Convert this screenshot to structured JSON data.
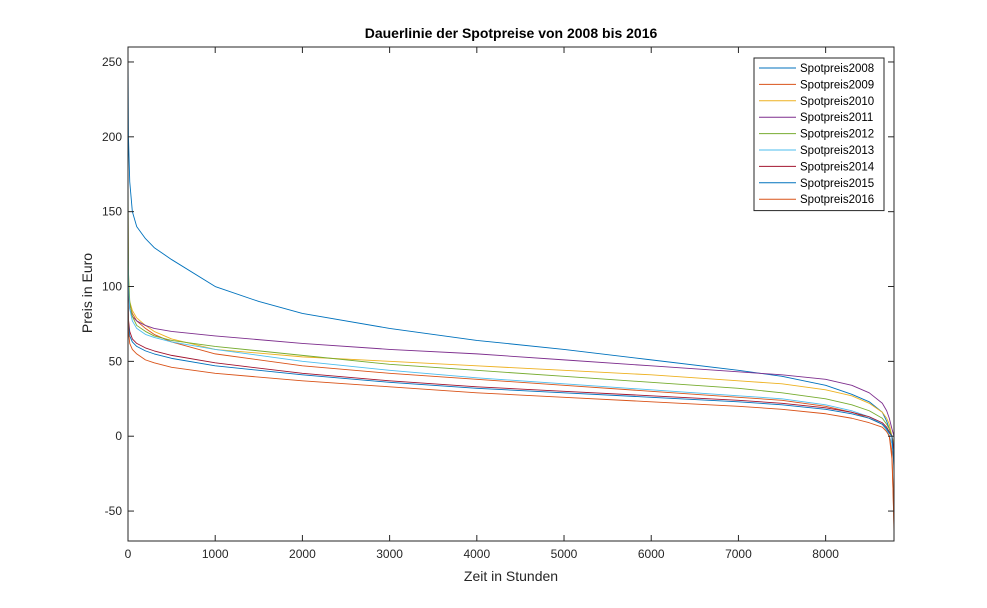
{
  "chart_data": {
    "type": "line",
    "title": "Dauerlinie der Spotpreise von 2008 bis 2016",
    "xlabel": "Zeit in Stunden",
    "ylabel": "Preis in Euro",
    "xlim": [
      0,
      8784
    ],
    "ylim": [
      -70,
      260
    ],
    "xticks": [
      0,
      1000,
      2000,
      3000,
      4000,
      5000,
      6000,
      7000,
      8000
    ],
    "yticks": [
      -50,
      0,
      50,
      100,
      150,
      200,
      250
    ],
    "legend": "top-right",
    "grid": false,
    "series": [
      {
        "name": "Spotpreis2008",
        "color": "#0072BD",
        "x": [
          0,
          5,
          20,
          50,
          100,
          200,
          300,
          500,
          1000,
          1500,
          2000,
          3000,
          4000,
          5000,
          6000,
          7000,
          7500,
          8000,
          8300,
          8500,
          8650,
          8700,
          8730,
          8760,
          8780,
          8784
        ],
        "y": [
          255,
          200,
          170,
          150,
          140,
          132,
          126,
          118,
          100,
          90,
          82,
          72,
          64,
          58,
          51,
          44,
          40,
          34,
          28,
          23,
          16,
          10,
          5,
          0,
          -15,
          -25
        ]
      },
      {
        "name": "Spotpreis2009",
        "color": "#D95319",
        "x": [
          0,
          5,
          20,
          50,
          100,
          200,
          300,
          500,
          1000,
          2000,
          3000,
          4000,
          5000,
          6000,
          7000,
          7500,
          8000,
          8300,
          8500,
          8650,
          8700,
          8730,
          8760,
          8775,
          8784
        ],
        "y": [
          160,
          100,
          88,
          82,
          77,
          72,
          68,
          63,
          55,
          47,
          42,
          38,
          34,
          30,
          26,
          24,
          20,
          16,
          12,
          8,
          4,
          0,
          -15,
          -40,
          -65
        ]
      },
      {
        "name": "Spotpreis2010",
        "color": "#EDB120",
        "x": [
          0,
          5,
          20,
          50,
          100,
          200,
          300,
          500,
          1000,
          2000,
          3000,
          4000,
          5000,
          6000,
          7000,
          7500,
          8000,
          8300,
          8500,
          8650,
          8700,
          8730,
          8760,
          8784
        ],
        "y": [
          130,
          100,
          90,
          84,
          79,
          74,
          70,
          65,
          58,
          53,
          50,
          47,
          44,
          41,
          37,
          35,
          31,
          27,
          22,
          16,
          12,
          8,
          0,
          -5
        ]
      },
      {
        "name": "Spotpreis2011",
        "color": "#7E2F8E",
        "x": [
          0,
          5,
          20,
          50,
          100,
          200,
          300,
          500,
          1000,
          2000,
          3000,
          4000,
          5000,
          6000,
          7000,
          7500,
          8000,
          8300,
          8500,
          8650,
          8700,
          8730,
          8760,
          8784
        ],
        "y": [
          115,
          95,
          85,
          80,
          77,
          74,
          72,
          70,
          67,
          62,
          58,
          55,
          51,
          47,
          43,
          41,
          38,
          34,
          29,
          22,
          17,
          12,
          5,
          0
        ]
      },
      {
        "name": "Spotpreis2012",
        "color": "#77AC30",
        "x": [
          0,
          5,
          20,
          50,
          100,
          200,
          300,
          500,
          1000,
          2000,
          3000,
          4000,
          5000,
          6000,
          7000,
          7500,
          8000,
          8300,
          8500,
          8650,
          8700,
          8730,
          8760,
          8784
        ],
        "y": [
          175,
          110,
          90,
          80,
          74,
          70,
          67,
          64,
          60,
          54,
          48,
          44,
          40,
          36,
          32,
          29,
          25,
          21,
          17,
          12,
          8,
          5,
          0,
          -10
        ]
      },
      {
        "name": "Spotpreis2013",
        "color": "#4DBEEE",
        "x": [
          0,
          5,
          20,
          50,
          100,
          200,
          300,
          500,
          1000,
          2000,
          3000,
          4000,
          5000,
          6000,
          7000,
          7500,
          8000,
          8300,
          8500,
          8650,
          8700,
          8730,
          8760,
          8784
        ],
        "y": [
          130,
          100,
          85,
          77,
          72,
          68,
          66,
          63,
          58,
          50,
          44,
          39,
          35,
          31,
          27,
          25,
          21,
          17,
          13,
          8,
          4,
          0,
          -5,
          -15
        ]
      },
      {
        "name": "Spotpreis2014",
        "color": "#A2142F",
        "x": [
          0,
          5,
          20,
          50,
          100,
          200,
          300,
          500,
          1000,
          2000,
          3000,
          4000,
          5000,
          6000,
          7000,
          7500,
          8000,
          8300,
          8500,
          8650,
          8700,
          8730,
          8760,
          8784
        ],
        "y": [
          90,
          78,
          70,
          65,
          62,
          59,
          57,
          54,
          49,
          42,
          37,
          33,
          30,
          27,
          24,
          22,
          19,
          16,
          13,
          9,
          6,
          3,
          0,
          -10
        ]
      },
      {
        "name": "Spotpreis2015",
        "color": "#0072BD",
        "x": [
          0,
          5,
          20,
          50,
          100,
          200,
          300,
          500,
          1000,
          2000,
          3000,
          4000,
          5000,
          6000,
          7000,
          7500,
          8000,
          8300,
          8500,
          8650,
          8700,
          8730,
          8760,
          8784
        ],
        "y": [
          100,
          75,
          67,
          63,
          60,
          57,
          55,
          52,
          47,
          41,
          36,
          32,
          29,
          26,
          23,
          21,
          18,
          15,
          12,
          8,
          5,
          2,
          0,
          -20
        ]
      },
      {
        "name": "Spotpreis2016",
        "color": "#D95319",
        "x": [
          0,
          5,
          20,
          50,
          100,
          200,
          300,
          500,
          1000,
          2000,
          3000,
          4000,
          5000,
          6000,
          7000,
          7500,
          8000,
          8300,
          8500,
          8650,
          8700,
          8730,
          8760,
          8784
        ],
        "y": [
          105,
          70,
          62,
          58,
          55,
          51,
          49,
          46,
          42,
          37,
          33,
          29,
          26,
          23,
          20,
          18,
          15,
          12,
          9,
          6,
          3,
          0,
          -10,
          -60
        ]
      }
    ]
  }
}
